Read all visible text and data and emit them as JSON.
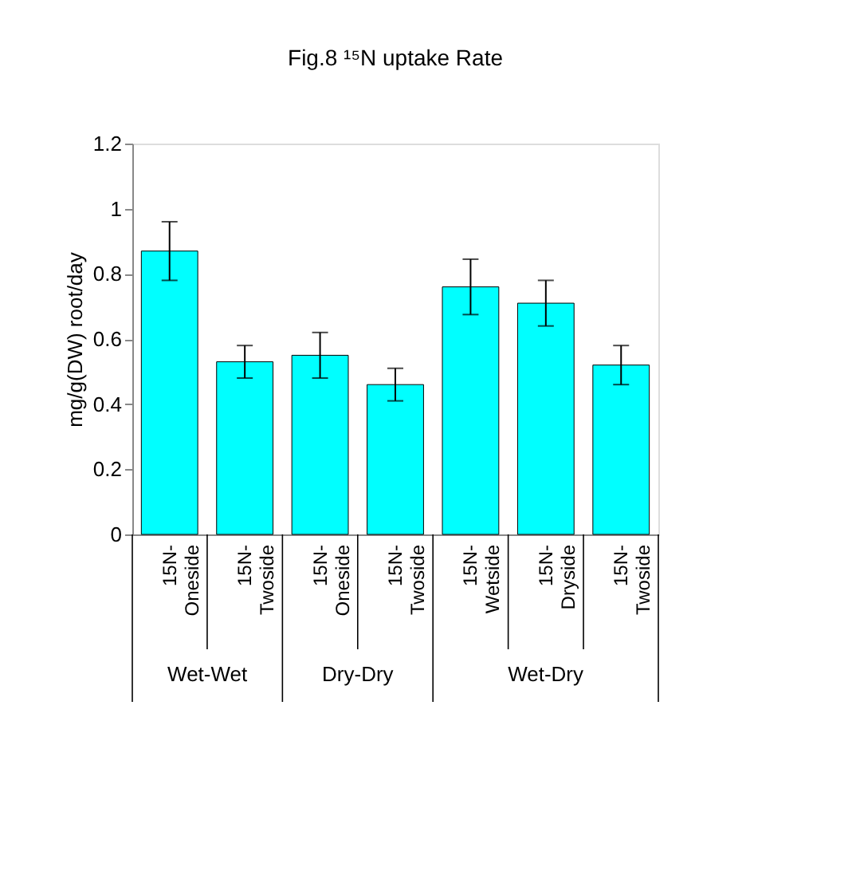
{
  "chart_data": {
    "type": "bar",
    "title": "Fig.8 ¹⁵N uptake Rate",
    "ylabel": "mg/g(DW) root/day",
    "categories": [
      "15N-Oneside",
      "15N-Twoside",
      "15N-Oneside",
      "15N-Twoside",
      "15N-Wetside",
      "15N-Dryside",
      "15N-Twoside"
    ],
    "values": [
      0.87,
      0.53,
      0.55,
      0.46,
      0.76,
      0.71,
      0.52
    ],
    "errors": [
      0.09,
      0.05,
      0.07,
      0.05,
      0.085,
      0.07,
      0.06
    ],
    "color": "#00ffff",
    "ylim": [
      0,
      1.2
    ],
    "yticks": [
      0,
      0.2,
      0.4,
      0.6,
      0.8,
      1,
      1.2
    ],
    "annotations": [
      "Wet-Wet",
      "Dry-Dry",
      "Wet-Dry"
    ],
    "grid": false
  }
}
